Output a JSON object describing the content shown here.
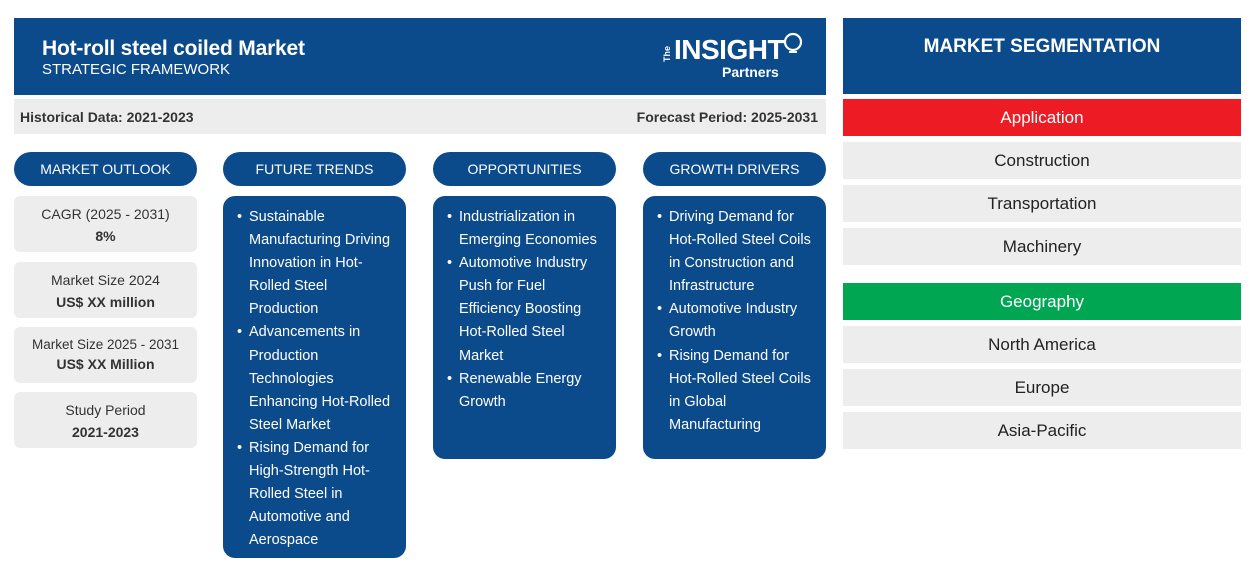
{
  "header": {
    "title": "Hot-roll steel coiled Market",
    "subtitle": "STRATEGIC FRAMEWORK",
    "logo_the": "The",
    "logo_insight": "INSIGHT",
    "logo_partners": "Partners"
  },
  "periods": {
    "historical": "Historical Data: 2021-2023",
    "forecast": "Forecast Period: 2025-2031"
  },
  "columns": {
    "outlook": "MARKET OUTLOOK",
    "trends": "FUTURE TRENDS",
    "opportunities": "OPPORTUNITIES",
    "drivers": "GROWTH DRIVERS"
  },
  "outlook": [
    {
      "label": "CAGR (2025 - 2031)",
      "value": "8%"
    },
    {
      "label": "Market Size 2024",
      "value": "US$ XX million"
    },
    {
      "label": "Market Size 2025 - 2031",
      "value": "US$ XX Million"
    },
    {
      "label": "Study Period",
      "value": "2021-2023"
    }
  ],
  "trends": [
    "Sustainable Manufacturing Driving Innovation in Hot-Rolled Steel Production",
    "Advancements in Production Technologies Enhancing Hot-Rolled Steel Market",
    "Rising Demand for High-Strength Hot-Rolled Steel in Automotive and Aerospace"
  ],
  "opportunities": [
    "Industrialization in Emerging Economies",
    "Automotive Industry Push for Fuel Efficiency Boosting Hot-Rolled Steel Market",
    "Renewable Energy Growth"
  ],
  "drivers": [
    "Driving Demand for Hot-Rolled Steel Coils in Construction and Infrastructure",
    "Automotive Industry Growth",
    "Rising Demand for Hot-Rolled Steel Coils in Global Manufacturing"
  ],
  "segmentation": {
    "title": "MARKET SEGMENTATION",
    "application": {
      "label": "Application",
      "color": "#ed1c24",
      "items": [
        "Construction",
        "Transportation",
        "Machinery"
      ]
    },
    "geography": {
      "label": "Geography",
      "color": "#00a651",
      "items": [
        "North America",
        "Europe",
        "Asia-Pacific"
      ]
    }
  },
  "colors": {
    "primary": "#0b4a8b",
    "panel": "#ededed"
  }
}
